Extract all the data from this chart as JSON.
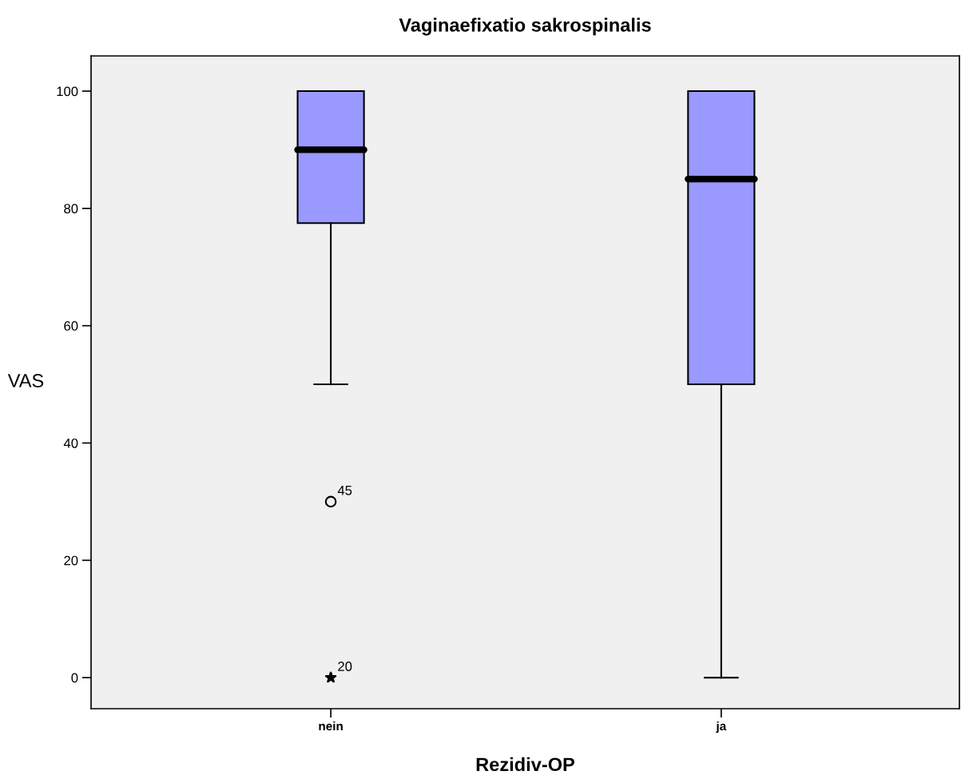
{
  "chart_data": {
    "type": "box",
    "title": "Vaginaefixatio sakrospinalis",
    "xlabel": "Rezidiv-OP",
    "ylabel": "VAS",
    "categories": [
      "nein",
      "ja"
    ],
    "boxes": [
      {
        "low": 50,
        "q1": 77.5,
        "median": 90,
        "q3": 100,
        "high": 100,
        "outliers": [
          30,
          0
        ]
      },
      {
        "low": 0,
        "q1": 50,
        "median": 85,
        "q3": 100,
        "high": 100
      }
    ],
    "color": "#9999ff",
    "ylim": [
      -5.3,
      106
    ],
    "yticks": [
      0,
      20,
      40,
      60,
      80,
      100
    ],
    "grid": false,
    "legend": false,
    "annotations": [
      "45",
      "20"
    ]
  }
}
